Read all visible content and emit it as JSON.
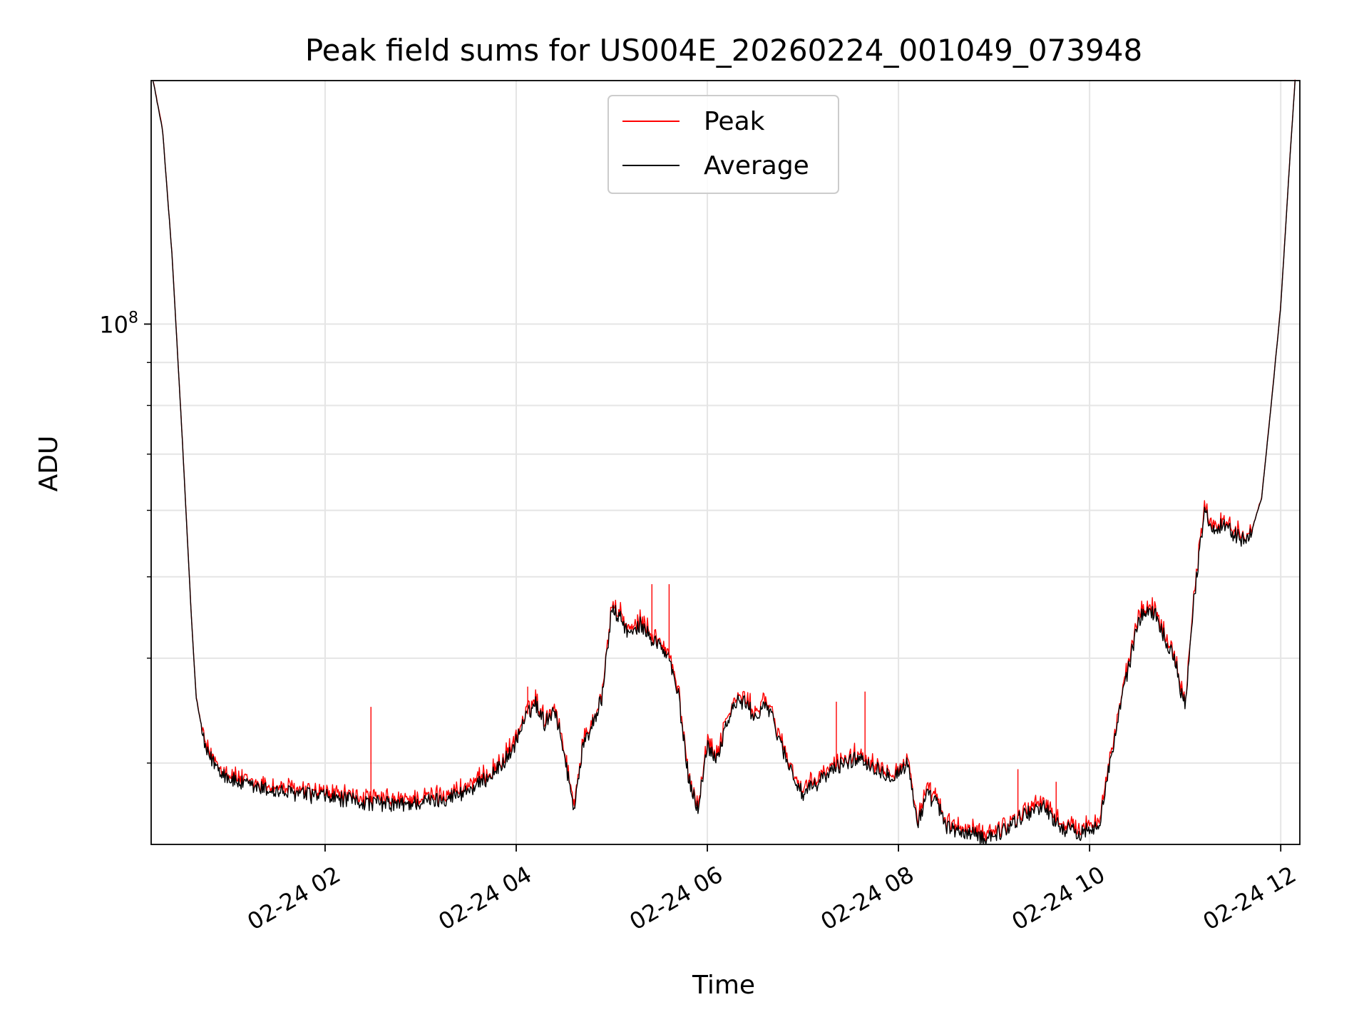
{
  "chart_data": {
    "type": "line",
    "title": "Peak field sums for US004E_20260224_001049_073948",
    "xlabel": "Time",
    "ylabel": "ADU",
    "yscale": "log",
    "ylim": [
      24000000,
      195000000
    ],
    "xlim_hours": [
      0.18,
      12.2
    ],
    "x_ticks": [
      {
        "value": 2,
        "label": "02-24 02"
      },
      {
        "value": 4,
        "label": "02-24 04"
      },
      {
        "value": 6,
        "label": "02-24 06"
      },
      {
        "value": 8,
        "label": "02-24 08"
      },
      {
        "value": 10,
        "label": "02-24 10"
      },
      {
        "value": 12,
        "label": "02-24 12"
      }
    ],
    "y_major_ticks": [
      {
        "value": 100000000,
        "base": "10",
        "exp": "8"
      }
    ],
    "y_minor_ticks": [
      30000000,
      40000000,
      50000000,
      60000000,
      70000000,
      80000000,
      90000000
    ],
    "grid": true,
    "legend": {
      "position": "upper-center",
      "entries": [
        {
          "label": "Peak",
          "color": "#ff0000"
        },
        {
          "label": "Average",
          "color": "#000000"
        }
      ]
    },
    "series": [
      {
        "name": "Average",
        "color": "#000000",
        "x_hours": [
          0.2,
          0.3,
          0.4,
          0.5,
          0.6,
          0.65,
          0.75,
          0.9,
          1.0,
          1.2,
          1.5,
          2.0,
          2.4,
          2.8,
          3.2,
          3.4,
          3.6,
          3.8,
          3.95,
          4.1,
          4.2,
          4.3,
          4.4,
          4.5,
          4.6,
          4.7,
          4.8,
          4.9,
          5.0,
          5.1,
          5.2,
          5.3,
          5.4,
          5.5,
          5.6,
          5.7,
          5.8,
          5.9,
          6.0,
          6.1,
          6.2,
          6.3,
          6.4,
          6.5,
          6.6,
          6.7,
          6.8,
          6.9,
          7.0,
          7.2,
          7.4,
          7.6,
          7.8,
          7.95,
          8.1,
          8.2,
          8.3,
          8.4,
          8.5,
          8.7,
          8.9,
          9.1,
          9.3,
          9.5,
          9.7,
          9.9,
          10.1,
          10.3,
          10.5,
          10.6,
          10.7,
          10.8,
          10.9,
          10.95,
          11.0,
          11.1,
          11.2,
          11.3,
          11.4,
          11.5,
          11.6,
          11.7,
          11.8,
          11.9,
          12.0,
          12.1,
          12.15
        ],
        "values": [
          195000000,
          170000000,
          120000000,
          75000000,
          45000000,
          36000000,
          31000000,
          29500000,
          28800000,
          28200000,
          27800000,
          27400000,
          27000000,
          26800000,
          27200000,
          27600000,
          28300000,
          29500000,
          31000000,
          34000000,
          35500000,
          33500000,
          35000000,
          31000000,
          26500000,
          31500000,
          33500000,
          36000000,
          46000000,
          44500000,
          42500000,
          44000000,
          42500000,
          41500000,
          40000000,
          36000000,
          29000000,
          26500000,
          31500000,
          30500000,
          33500000,
          35500000,
          35500000,
          34000000,
          35500000,
          33500000,
          31000000,
          29000000,
          27500000,
          28800000,
          30000000,
          30500000,
          29500000,
          29000000,
          30000000,
          25500000,
          27500000,
          27000000,
          25200000,
          24800000,
          24500000,
          25000000,
          26000000,
          26800000,
          25200000,
          24800000,
          25500000,
          34000000,
          44000000,
          46000000,
          45000000,
          42000000,
          40000000,
          36500000,
          35500000,
          48000000,
          60000000,
          57000000,
          58000000,
          56500000,
          55500000,
          57000000,
          62000000,
          80000000,
          105000000,
          160000000,
          195000000
        ]
      },
      {
        "name": "Peak",
        "color": "#ff0000",
        "spikes": [
          {
            "x_hours": 2.48,
            "value": 35000000
          },
          {
            "x_hours": 4.12,
            "value": 37000000
          },
          {
            "x_hours": 5.42,
            "value": 49000000
          },
          {
            "x_hours": 5.6,
            "value": 49000000
          },
          {
            "x_hours": 7.35,
            "value": 35500000
          },
          {
            "x_hours": 7.65,
            "value": 36500000
          },
          {
            "x_hours": 9.25,
            "value": 29500000
          },
          {
            "x_hours": 9.65,
            "value": 28500000
          }
        ]
      }
    ]
  }
}
